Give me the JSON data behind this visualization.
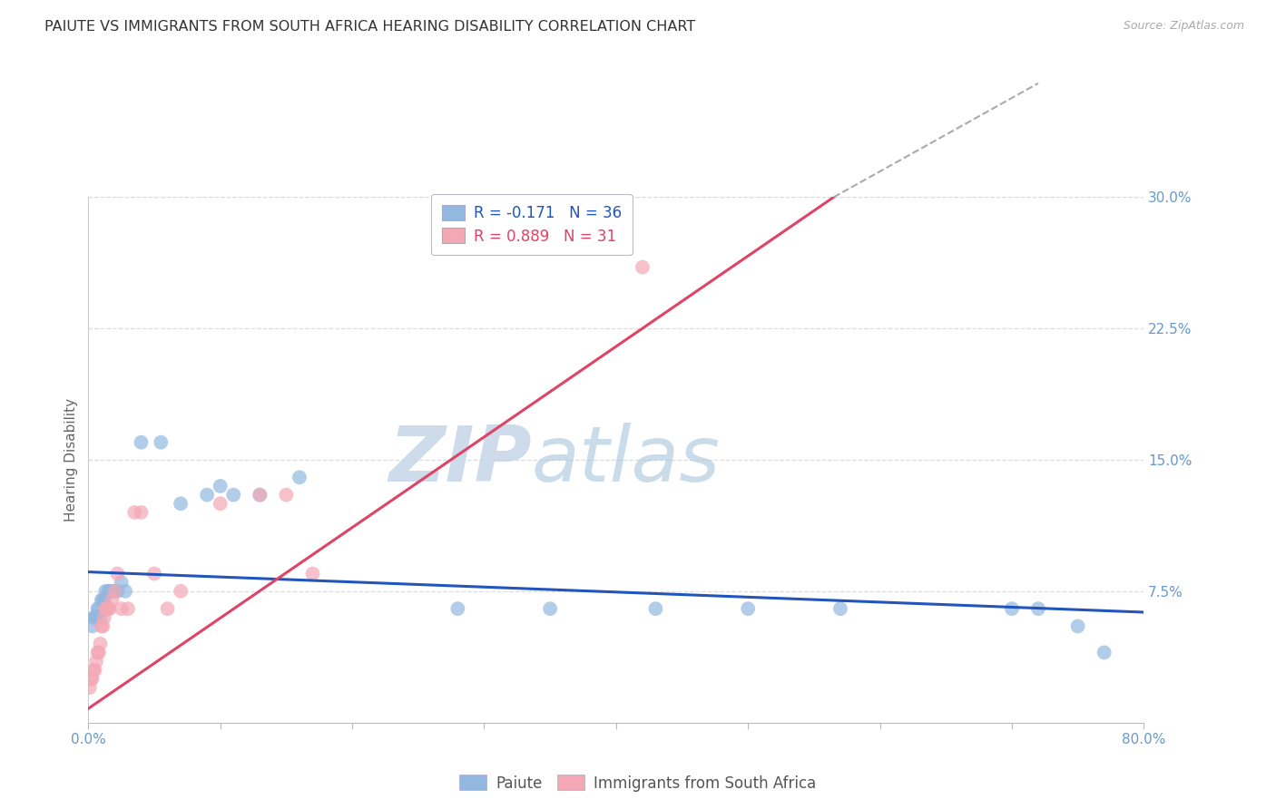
{
  "title": "PAIUTE VS IMMIGRANTS FROM SOUTH AFRICA HEARING DISABILITY CORRELATION CHART",
  "source": "Source: ZipAtlas.com",
  "ylabel": "Hearing Disability",
  "xlim": [
    0,
    0.8
  ],
  "ylim": [
    0,
    0.3
  ],
  "xticks": [
    0.0,
    0.1,
    0.2,
    0.3,
    0.4,
    0.5,
    0.6,
    0.7,
    0.8
  ],
  "xticklabels": [
    "0.0%",
    "",
    "",
    "",
    "",
    "",
    "",
    "",
    "80.0%"
  ],
  "yticks": [
    0.075,
    0.15,
    0.225,
    0.3
  ],
  "yticklabels": [
    "7.5%",
    "15.0%",
    "22.5%",
    "30.0%"
  ],
  "legend_r_blue": "R = -0.171",
  "legend_n_blue": "N = 36",
  "legend_r_pink": "R = 0.889",
  "legend_n_pink": "N = 31",
  "legend_label_blue": "Paiute",
  "legend_label_pink": "Immigrants from South Africa",
  "blue_color": "#92B8E0",
  "pink_color": "#F4A7B5",
  "trendline_blue_color": "#2255BB",
  "trendline_pink_color": "#DD4466",
  "watermark_zip": "ZIP",
  "watermark_atlas": "atlas",
  "blue_x": [
    0.003,
    0.004,
    0.005,
    0.006,
    0.007,
    0.008,
    0.009,
    0.01,
    0.011,
    0.012,
    0.013,
    0.015,
    0.016,
    0.017,
    0.019,
    0.02,
    0.022,
    0.025,
    0.028,
    0.04,
    0.055,
    0.07,
    0.09,
    0.1,
    0.11,
    0.13,
    0.16,
    0.28,
    0.35,
    0.43,
    0.5,
    0.57,
    0.7,
    0.72,
    0.75,
    0.77
  ],
  "blue_y": [
    0.055,
    0.06,
    0.06,
    0.06,
    0.065,
    0.065,
    0.06,
    0.07,
    0.07,
    0.07,
    0.075,
    0.075,
    0.075,
    0.075,
    0.075,
    0.075,
    0.075,
    0.08,
    0.075,
    0.16,
    0.16,
    0.125,
    0.13,
    0.135,
    0.13,
    0.13,
    0.14,
    0.065,
    0.065,
    0.065,
    0.065,
    0.065,
    0.065,
    0.065,
    0.055,
    0.04
  ],
  "pink_x": [
    0.001,
    0.002,
    0.003,
    0.004,
    0.005,
    0.006,
    0.007,
    0.008,
    0.009,
    0.01,
    0.011,
    0.012,
    0.013,
    0.014,
    0.015,
    0.016,
    0.018,
    0.02,
    0.022,
    0.025,
    0.03,
    0.035,
    0.04,
    0.05,
    0.06,
    0.07,
    0.1,
    0.13,
    0.15,
    0.17,
    0.42
  ],
  "pink_y": [
    0.02,
    0.025,
    0.025,
    0.03,
    0.03,
    0.035,
    0.04,
    0.04,
    0.045,
    0.055,
    0.055,
    0.06,
    0.065,
    0.065,
    0.065,
    0.065,
    0.07,
    0.075,
    0.085,
    0.065,
    0.065,
    0.12,
    0.12,
    0.085,
    0.065,
    0.075,
    0.125,
    0.13,
    0.13,
    0.085,
    0.26
  ],
  "blue_trend_x": [
    0.0,
    0.8
  ],
  "blue_trend_y": [
    0.086,
    0.063
  ],
  "pink_trend_x": [
    0.0,
    0.565
  ],
  "pink_trend_y": [
    0.008,
    0.3
  ],
  "background_color": "#ffffff",
  "grid_color": "#dddddd",
  "title_color": "#333333",
  "axis_color": "#6699CC",
  "title_fontsize": 11.5,
  "axis_label_fontsize": 11,
  "tick_fontsize": 11
}
